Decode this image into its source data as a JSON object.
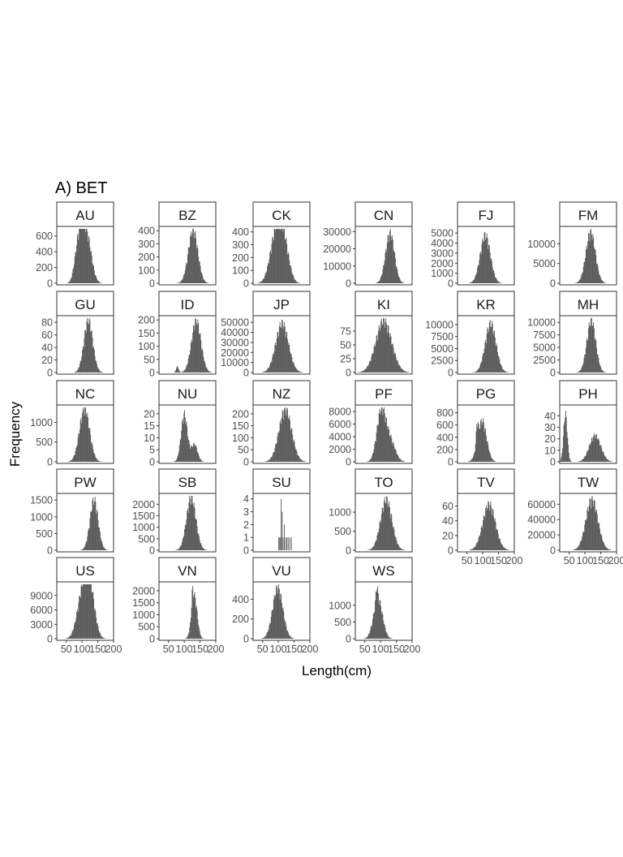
{
  "figure": {
    "title": "A) BET",
    "xlabel": "Length(cm)",
    "ylabel": "Frequency"
  },
  "chart_data": {
    "type": "bar",
    "subtype": "faceted-histogram",
    "title": "A) BET",
    "xlabel": "Length(cm)",
    "ylabel": "Frequency",
    "xlim": [
      20,
      200
    ],
    "xticks": [
      50,
      100,
      150,
      200
    ],
    "bar_color": "#595959",
    "panel_border_color": "#333333",
    "panels": [
      {
        "label": "AU",
        "ymax": 700,
        "yticks": [
          0,
          200,
          400,
          600
        ],
        "has_xaxis": false,
        "peaks": [
          {
            "center": 98,
            "sd": 12,
            "height": 560
          },
          {
            "center": 118,
            "sd": 14,
            "height": 470
          },
          {
            "center": 82,
            "sd": 10,
            "height": 200
          }
        ]
      },
      {
        "label": "BZ",
        "ymax": 420,
        "yticks": [
          0,
          100,
          200,
          300,
          400
        ],
        "has_xaxis": false,
        "peaks": [
          {
            "center": 128,
            "sd": 15,
            "height": 390
          }
        ]
      },
      {
        "label": "CK",
        "ymax": 430,
        "yticks": [
          0,
          100,
          200,
          300,
          400
        ],
        "has_xaxis": false,
        "peaks": [
          {
            "center": 92,
            "sd": 18,
            "height": 360
          },
          {
            "center": 118,
            "sd": 16,
            "height": 270
          }
        ]
      },
      {
        "label": "CN",
        "ymax": 32000,
        "yticks": [
          0,
          10000,
          20000,
          30000
        ],
        "has_xaxis": false,
        "peaks": [
          {
            "center": 130,
            "sd": 14,
            "height": 28000
          }
        ]
      },
      {
        "label": "FJ",
        "ymax": 5500,
        "yticks": [
          0,
          1000,
          2000,
          3000,
          4000,
          5000
        ],
        "has_xaxis": false,
        "peaks": [
          {
            "center": 108,
            "sd": 16,
            "height": 4600
          }
        ]
      },
      {
        "label": "FM",
        "ymax": 14000,
        "yticks": [
          0,
          5000,
          10000
        ],
        "has_xaxis": false,
        "peaks": [
          {
            "center": 118,
            "sd": 15,
            "height": 12500
          }
        ]
      },
      {
        "label": "GU",
        "ymax": 88,
        "yticks": [
          0,
          20,
          40,
          60,
          80
        ],
        "has_xaxis": false,
        "peaks": [
          {
            "center": 120,
            "sd": 14,
            "height": 80
          }
        ]
      },
      {
        "label": "ID",
        "ymax": 210,
        "yticks": [
          0,
          50,
          100,
          150,
          200
        ],
        "has_xaxis": false,
        "peaks": [
          {
            "center": 138,
            "sd": 15,
            "height": 190
          },
          {
            "center": 78,
            "sd": 4,
            "height": 22
          }
        ]
      },
      {
        "label": "JP",
        "ymax": 55000,
        "yticks": [
          0,
          10000,
          20000,
          30000,
          40000,
          50000
        ],
        "has_xaxis": false,
        "peaks": [
          {
            "center": 112,
            "sd": 20,
            "height": 47000
          }
        ]
      },
      {
        "label": "KI",
        "ymax": 100,
        "yticks": [
          0,
          25,
          50,
          75
        ],
        "has_xaxis": false,
        "peaks": [
          {
            "center": 110,
            "sd": 25,
            "height": 90
          }
        ]
      },
      {
        "label": "KR",
        "ymax": 11500,
        "yticks": [
          0,
          2500,
          5000,
          7500,
          10000
        ],
        "has_xaxis": false,
        "peaks": [
          {
            "center": 125,
            "sd": 17,
            "height": 9800
          }
        ]
      },
      {
        "label": "MH",
        "ymax": 11000,
        "yticks": [
          0,
          2500,
          5000,
          7500,
          10000
        ],
        "has_xaxis": false,
        "peaks": [
          {
            "center": 120,
            "sd": 14,
            "height": 10000
          }
        ]
      },
      {
        "label": "NC",
        "ymax": 1400,
        "yticks": [
          0,
          500,
          1000
        ],
        "has_xaxis": false,
        "peaks": [
          {
            "center": 108,
            "sd": 16,
            "height": 1300
          }
        ]
      },
      {
        "label": "NU",
        "ymax": 23,
        "yticks": [
          0,
          5,
          10,
          15,
          20
        ],
        "has_xaxis": false,
        "peaks": [
          {
            "center": 100,
            "sd": 10,
            "height": 19
          },
          {
            "center": 132,
            "sd": 10,
            "height": 7
          }
        ]
      },
      {
        "label": "NZ",
        "ymax": 230,
        "yticks": [
          0,
          50,
          100,
          150,
          200
        ],
        "has_xaxis": false,
        "peaks": [
          {
            "center": 122,
            "sd": 20,
            "height": 210
          }
        ]
      },
      {
        "label": "PF",
        "ymax": 8800,
        "yticks": [
          0,
          2000,
          4000,
          6000,
          8000
        ],
        "has_xaxis": false,
        "peaks": [
          {
            "center": 102,
            "sd": 14,
            "height": 7600
          },
          {
            "center": 130,
            "sd": 16,
            "height": 3200
          }
        ]
      },
      {
        "label": "PG",
        "ymax": 900,
        "yticks": [
          0,
          200,
          400,
          600,
          800
        ],
        "has_xaxis": false,
        "peaks": [
          {
            "center": 98,
            "sd": 14,
            "height": 640
          },
          {
            "center": 82,
            "sd": 3,
            "height": 300
          }
        ]
      },
      {
        "label": "PH",
        "ymax": 48,
        "yticks": [
          0,
          10,
          20,
          30,
          40
        ],
        "has_xaxis": false,
        "peaks": [
          {
            "center": 38,
            "sd": 6,
            "height": 40
          },
          {
            "center": 132,
            "sd": 18,
            "height": 22
          }
        ]
      },
      {
        "label": "PW",
        "ymax": 1650,
        "yticks": [
          0,
          500,
          1000,
          1500
        ],
        "has_xaxis": false,
        "peaks": [
          {
            "center": 138,
            "sd": 13,
            "height": 1450
          }
        ]
      },
      {
        "label": "SB",
        "ymax": 2400,
        "yticks": [
          0,
          500,
          1000,
          1500,
          2000
        ],
        "has_xaxis": false,
        "peaks": [
          {
            "center": 122,
            "sd": 15,
            "height": 2200
          }
        ]
      },
      {
        "label": "SU",
        "ymax": 4.3,
        "yticks": [
          0,
          1,
          2,
          3,
          4
        ],
        "has_xaxis": false,
        "bars": [
          {
            "x": 100,
            "y": 1
          },
          {
            "x": 103,
            "y": 1
          },
          {
            "x": 106,
            "y": 1
          },
          {
            "x": 108,
            "y": 4
          },
          {
            "x": 111,
            "y": 3
          },
          {
            "x": 114,
            "y": 1
          },
          {
            "x": 118,
            "y": 2
          },
          {
            "x": 122,
            "y": 1
          },
          {
            "x": 126,
            "y": 1
          },
          {
            "x": 130,
            "y": 1
          },
          {
            "x": 135,
            "y": 1
          },
          {
            "x": 140,
            "y": 1
          }
        ]
      },
      {
        "label": "TO",
        "ymax": 1450,
        "yticks": [
          0,
          500,
          1000
        ],
        "has_xaxis": false,
        "peaks": [
          {
            "center": 118,
            "sd": 18,
            "height": 1280
          }
        ]
      },
      {
        "label": "TV",
        "ymax": 75,
        "yticks": [
          0,
          20,
          40,
          60
        ],
        "has_xaxis": true,
        "peaks": [
          {
            "center": 120,
            "sd": 20,
            "height": 60
          }
        ]
      },
      {
        "label": "TW",
        "ymax": 72000,
        "yticks": [
          0,
          20000,
          40000,
          60000
        ],
        "has_xaxis": true,
        "peaks": [
          {
            "center": 122,
            "sd": 19,
            "height": 64000
          }
        ]
      },
      {
        "label": "US",
        "ymax": 11500,
        "yticks": [
          0,
          3000,
          6000,
          9000
        ],
        "has_xaxis": true,
        "peaks": [
          {
            "center": 102,
            "sd": 17,
            "height": 9000
          },
          {
            "center": 126,
            "sd": 15,
            "height": 8700
          }
        ]
      },
      {
        "label": "VN",
        "ymax": 2300,
        "yticks": [
          0,
          500,
          1000,
          1500,
          2000
        ],
        "has_xaxis": true,
        "peaks": [
          {
            "center": 132,
            "sd": 9,
            "height": 1700
          },
          {
            "center": 126,
            "sd": 2.5,
            "height": 600
          }
        ]
      },
      {
        "label": "VU",
        "ymax": 560,
        "yticks": [
          0,
          200,
          400
        ],
        "has_xaxis": true,
        "peaks": [
          {
            "center": 98,
            "sd": 16,
            "height": 500
          }
        ]
      },
      {
        "label": "WS",
        "ymax": 1650,
        "yticks": [
          0,
          500,
          1000
        ],
        "has_xaxis": true,
        "peaks": [
          {
            "center": 92,
            "sd": 14,
            "height": 1150
          },
          {
            "center": 88,
            "sd": 3,
            "height": 400
          }
        ]
      }
    ]
  }
}
